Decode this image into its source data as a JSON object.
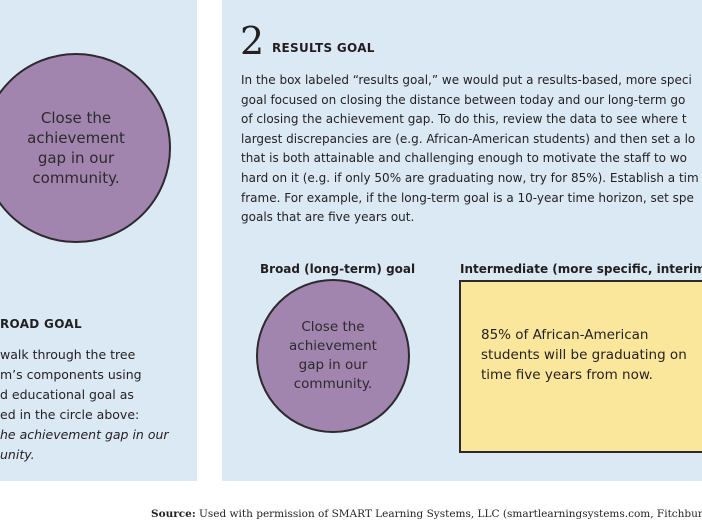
{
  "left_panel": {
    "circle_text": "Close the achievement gap in our community.",
    "title": "ROAD GOAL",
    "body_lines": [
      "walk through the tree",
      "m’s components using",
      "d educational goal as",
      "ed in the circle above:"
    ],
    "italic_lines": [
      "he achievement gap in our",
      "unity."
    ]
  },
  "right_panel": {
    "step_number": "2",
    "step_title": "RESULTS GOAL",
    "intro_lines": [
      "In the box labeled “results goal,” we would put a results-based, more speci",
      "goal focused on closing the distance between today and our long-term go",
      "of closing the achievement gap. To do this, review the data to see where t",
      "largest discrepancies are (e.g. African-American students) and then set a lo",
      "that is both attainable and challenging enough to motivate the staff to wo",
      "hard on it (e.g. if only 50% are graduating now, try for 85%). Establish a tim",
      "frame. For example, if the long-term goal is a 10-year time horizon, set spe",
      "goals that are five years out."
    ],
    "broad_label": "Broad (long-term) goal",
    "intermediate_label": "Intermediate (more specific, interim) g",
    "circle_text": "Close the achievement gap in our community.",
    "box_text": "85% of African-American students will be graduating on time five years from now."
  },
  "source": {
    "label": "Source:",
    "text": "Used with permission of SMART Learning Systems, LLC (smartlearningsystems.com, Fitchburg, W"
  },
  "colors": {
    "panel": "#dbe9f5",
    "circle": "#a285ae",
    "box": "#fbe79b"
  }
}
